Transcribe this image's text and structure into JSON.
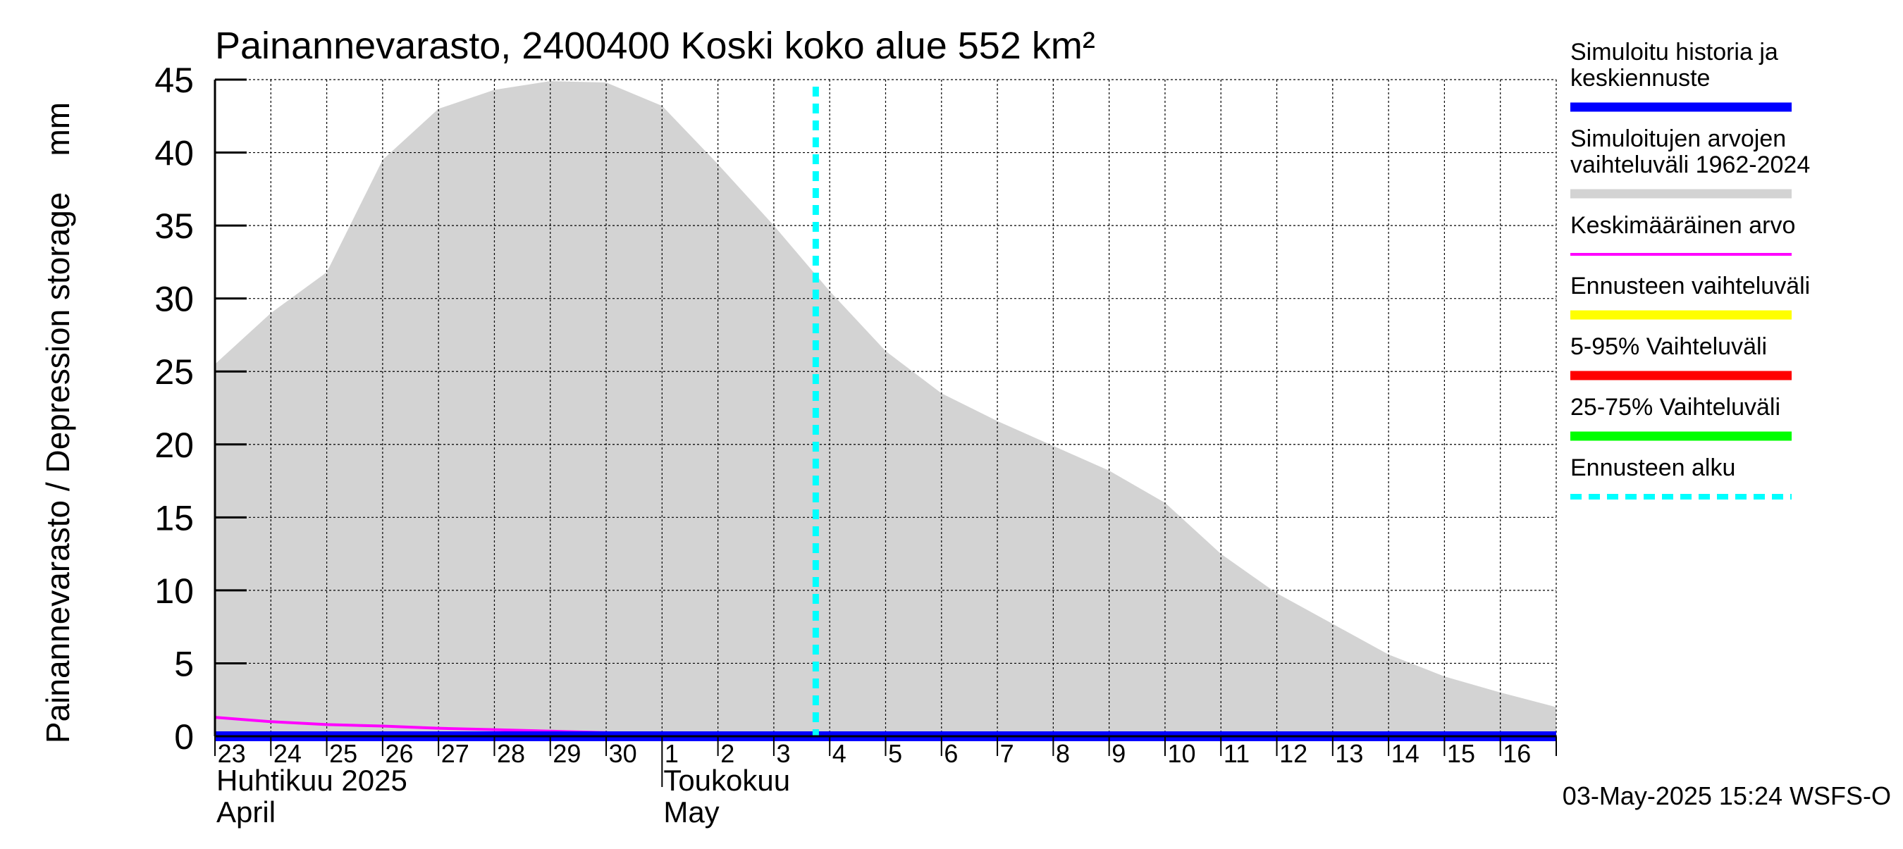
{
  "chart_data": {
    "type": "area",
    "title": "Painannevarasto, 2400400 Koski koko alue 552 km²",
    "ylabel": "Painannevarasto / Depression storage    mm",
    "ylim": [
      0,
      45
    ],
    "yticks": [
      0,
      5,
      10,
      15,
      20,
      25,
      30,
      35,
      40,
      45
    ],
    "grid": true,
    "legend_position": "right",
    "x_day_labels": [
      "23",
      "24",
      "25",
      "26",
      "27",
      "28",
      "29",
      "30",
      "1",
      "2",
      "3",
      "4",
      "5",
      "6",
      "7",
      "8",
      "9",
      "10",
      "11",
      "12",
      "13",
      "14",
      "15",
      "16"
    ],
    "month_labels": [
      {
        "fi": "Huhtikuu  2025",
        "en": "April"
      },
      {
        "fi": "Toukokuu",
        "en": "May"
      }
    ],
    "forecast_start_day": 10.75,
    "range_band": {
      "name": "Simuloitujen arvojen vaihteluväli 1962-2024",
      "color": "#d3d3d3",
      "day": [
        0,
        1,
        2,
        3,
        4,
        5,
        6,
        7,
        8,
        9,
        10,
        11,
        12,
        13,
        14,
        15,
        16,
        17,
        18,
        19,
        20,
        21,
        22,
        23,
        24
      ],
      "upper": [
        25.5,
        29.0,
        31.8,
        39.5,
        43.0,
        44.3,
        44.9,
        44.8,
        43.2,
        39.2,
        35.0,
        30.5,
        26.4,
        23.5,
        21.6,
        19.9,
        18.2,
        16.0,
        12.5,
        9.8,
        7.7,
        5.6,
        4.1,
        3.0,
        2.0
      ],
      "lower": [
        0,
        0,
        0,
        0,
        0,
        0,
        0,
        0,
        0,
        0,
        0,
        0,
        0,
        0,
        0,
        0,
        0,
        0,
        0,
        0,
        0,
        0,
        0,
        0,
        0
      ]
    },
    "series": [
      {
        "name": "Keskimääräinen arvo",
        "color": "#ff00ff",
        "day": [
          0,
          1,
          2,
          3,
          4,
          5,
          6,
          7,
          8,
          9,
          10,
          11,
          12,
          13,
          14,
          15,
          16,
          17,
          18,
          19,
          20,
          21,
          22,
          23,
          24
        ],
        "values": [
          1.3,
          1.0,
          0.8,
          0.7,
          0.55,
          0.45,
          0.35,
          0.25,
          0.15,
          0.08,
          0.05,
          0.03,
          0.02,
          0.02,
          0.02,
          0.02,
          0.02,
          0.02,
          0.02,
          0.02,
          0.02,
          0.02,
          0.02,
          0.02,
          0.02
        ]
      },
      {
        "name": "Simuloitu historia ja keskiennuste",
        "color": "#0000ff",
        "day": [
          0,
          24
        ],
        "values": [
          0,
          0
        ]
      }
    ],
    "legend": [
      {
        "label": "Simuloitu historia ja\nkeskiennuste",
        "color": "#0000ff",
        "style": "thick"
      },
      {
        "label": "Simuloitujen arvojen\nvaihteluväli 1962-2024",
        "color": "#d3d3d3",
        "style": "thick"
      },
      {
        "label": "Keskimääräinen arvo",
        "color": "#ff00ff",
        "style": "thin"
      },
      {
        "label": "Ennusteen vaihteluväli",
        "color": "#ffff00",
        "style": "thick"
      },
      {
        "label": "5-95% Vaihteluväli",
        "color": "#ff0000",
        "style": "thick"
      },
      {
        "label": "25-75% Vaihteluväli",
        "color": "#00ff00",
        "style": "thick"
      },
      {
        "label": "Ennusteen alku",
        "color": "#00ffff",
        "style": "dashed"
      }
    ],
    "footer": "03-May-2025 15:24 WSFS-O"
  }
}
